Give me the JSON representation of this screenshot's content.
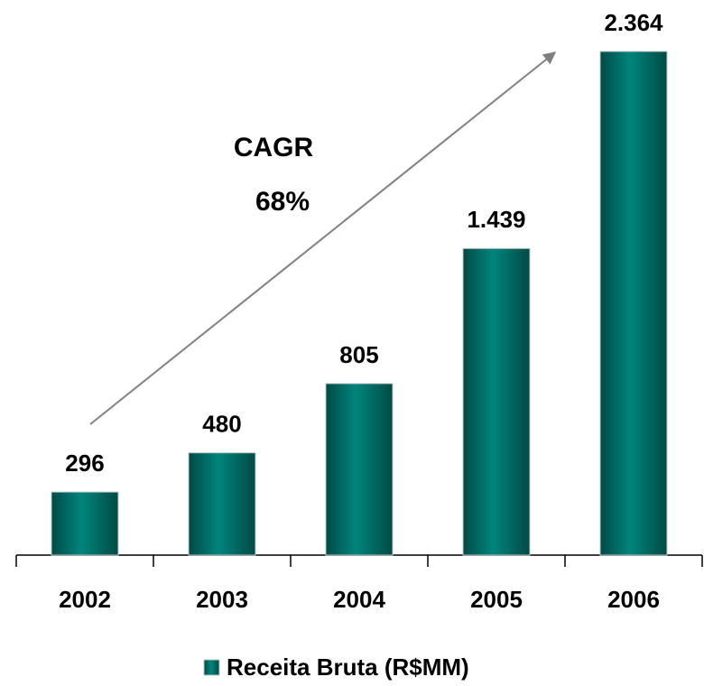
{
  "chart_data": {
    "type": "bar",
    "categories": [
      "2002",
      "2003",
      "2004",
      "2005",
      "2006"
    ],
    "series": [
      {
        "name": "Receita Bruta (R$MM)",
        "color": "#00857c",
        "values": [
          296,
          480,
          805,
          1439,
          2364
        ],
        "value_labels": [
          "296",
          "480",
          "805",
          "1.439",
          "2.364"
        ]
      }
    ],
    "annotations": [
      "CAGR",
      "68%"
    ],
    "legend": "bottom"
  }
}
